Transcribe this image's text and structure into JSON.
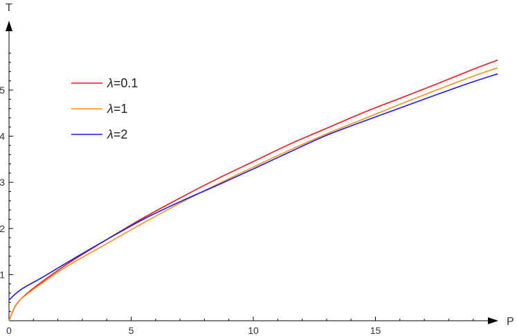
{
  "chart_data": {
    "type": "line",
    "title": "",
    "xlabel": "P",
    "ylabel": "T",
    "xlim": [
      0,
      20
    ],
    "ylim": [
      0,
      6
    ],
    "x_ticks": [
      0,
      5,
      10,
      15
    ],
    "y_ticks": [
      1,
      2,
      3,
      4,
      5
    ],
    "x_tick_labels": [
      "0",
      "5",
      "10",
      "15"
    ],
    "y_tick_labels": [
      "1",
      "2",
      "3",
      "4",
      "5"
    ],
    "grid": false,
    "legend_position": "top-left",
    "series": [
      {
        "name": "λ=0.1",
        "symbol": "λ",
        "value_text": "=0.1",
        "color": "#e8161d",
        "x": [
          0,
          0.3,
          0.8,
          1.5,
          2.5,
          4,
          5.5,
          7,
          8.5,
          10,
          11.5,
          13,
          14.5,
          16,
          17.5,
          19,
          20
        ],
        "y": [
          0,
          0.35,
          0.62,
          0.9,
          1.27,
          1.76,
          2.23,
          2.66,
          3.07,
          3.45,
          3.83,
          4.17,
          4.51,
          4.82,
          5.13,
          5.45,
          5.65
        ]
      },
      {
        "name": "λ=1",
        "symbol": "λ",
        "value_text": "=1",
        "color": "#f5901e",
        "x": [
          0,
          0.3,
          0.8,
          1.5,
          2.5,
          4,
          5.5,
          7,
          8.5,
          10,
          11.5,
          13,
          14.5,
          16,
          17.5,
          19,
          20
        ],
        "y": [
          0,
          0.36,
          0.6,
          0.87,
          1.22,
          1.67,
          2.12,
          2.55,
          2.95,
          3.33,
          3.7,
          4.05,
          4.37,
          4.69,
          5.0,
          5.3,
          5.48
        ]
      },
      {
        "name": "λ=2",
        "symbol": "λ",
        "value_text": "=2",
        "color": "#1a1ae0",
        "x": [
          0,
          0.5,
          1.4,
          2.5,
          4,
          5.5,
          7,
          8.5,
          10,
          11.5,
          13,
          14.5,
          16,
          17.5,
          19,
          20
        ],
        "y": [
          0.45,
          0.68,
          0.95,
          1.3,
          1.76,
          2.2,
          2.58,
          2.93,
          3.29,
          3.66,
          4.02,
          4.32,
          4.61,
          4.9,
          5.18,
          5.35
        ]
      }
    ]
  }
}
